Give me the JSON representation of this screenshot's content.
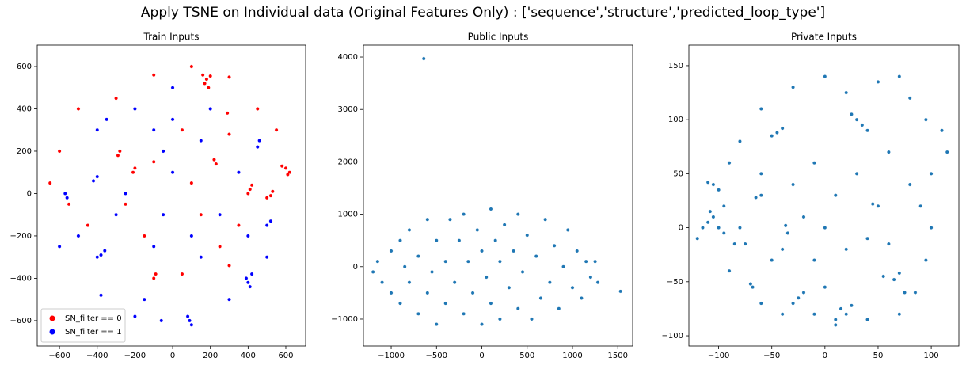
{
  "title": "Apply TSNE on Individual data (Original Features Only) : ['sequence','structure','predicted_loop_type']",
  "chart_data": [
    {
      "type": "scatter",
      "title": "Train Inputs",
      "legend": "lower left",
      "xlim": [
        -718,
        705
      ],
      "ylim": [
        -720,
        701
      ],
      "xticks": [
        {
          "value": -600,
          "label": "−600"
        },
        {
          "value": -400,
          "label": "−400"
        },
        {
          "value": -200,
          "label": "−200"
        },
        0,
        200,
        400,
        600
      ],
      "yticks": [
        {
          "value": -600,
          "label": "−600"
        },
        {
          "value": -400,
          "label": "−400"
        },
        {
          "value": -200,
          "label": "−200"
        },
        0,
        200,
        400,
        600
      ],
      "series": [
        {
          "name": "SN_filter == 0",
          "color": "#ff0000",
          "x": [
            180,
            170,
            200,
            190,
            160,
            600,
            620,
            580,
            610,
            520,
            530,
            500,
            410,
            400,
            420,
            -280,
            -290,
            -200,
            -210,
            220,
            230,
            300,
            290,
            -100,
            -90,
            50,
            -650,
            -600,
            -500,
            -300,
            -100,
            100,
            300,
            450,
            550,
            350,
            150,
            -150,
            -450,
            -100,
            50,
            -250,
            250,
            300,
            -550,
            100
          ],
          "y": [
            540,
            520,
            555,
            500,
            560,
            120,
            100,
            130,
            90,
            -10,
            10,
            -20,
            20,
            0,
            40,
            200,
            180,
            120,
            100,
            160,
            140,
            280,
            380,
            -400,
            -380,
            -380,
            50,
            200,
            400,
            450,
            560,
            600,
            550,
            400,
            300,
            -150,
            -100,
            -200,
            -150,
            150,
            300,
            -50,
            -250,
            -340,
            -50,
            50
          ]
        },
        {
          "name": "SN_filter == 1",
          "color": "#0000ff",
          "x": [
            400,
            410,
            390,
            420,
            -380,
            -400,
            -360,
            -60,
            90,
            100,
            80,
            450,
            460,
            -570,
            -560,
            -380,
            -200,
            -150,
            -400,
            -200,
            0,
            -400,
            -420,
            0,
            200,
            350,
            500,
            300,
            150,
            -50,
            100,
            -300,
            -500,
            -250,
            0,
            150,
            -100,
            -600,
            500,
            -100,
            250,
            400,
            -50,
            -350,
            520
          ],
          "y": [
            -420,
            -440,
            -400,
            -380,
            -290,
            -300,
            -270,
            -600,
            -600,
            -620,
            -580,
            220,
            250,
            0,
            -20,
            -480,
            -580,
            -500,
            300,
            400,
            500,
            80,
            60,
            350,
            400,
            100,
            -150,
            -500,
            -300,
            -100,
            -200,
            -100,
            -200,
            0,
            100,
            250,
            300,
            -250,
            -300,
            -250,
            -100,
            -200,
            200,
            350,
            -130
          ]
        }
      ]
    },
    {
      "type": "scatter",
      "title": "Public Inputs",
      "xlim": [
        -1306,
        1664
      ],
      "ylim": [
        -1514,
        4227
      ],
      "xticks": [
        {
          "value": -1000,
          "label": "−1000"
        },
        {
          "value": -500,
          "label": "−500"
        },
        0,
        500,
        1000,
        1500
      ],
      "yticks": [
        {
          "value": -1000,
          "label": "−1000"
        },
        0,
        1000,
        2000,
        3000,
        4000
      ],
      "series": [
        {
          "color": "#1f77b4",
          "x": [
            -1200,
            -1150,
            -1100,
            -1000,
            -1000,
            -900,
            -900,
            -850,
            -800,
            -800,
            -700,
            -700,
            -600,
            -600,
            -550,
            -500,
            -500,
            -400,
            -400,
            -350,
            -300,
            -250,
            -200,
            -200,
            -150,
            -100,
            -50,
            0,
            0,
            50,
            100,
            100,
            150,
            200,
            200,
            250,
            300,
            350,
            400,
            400,
            450,
            500,
            550,
            600,
            650,
            700,
            750,
            800,
            850,
            900,
            950,
            1000,
            1050,
            1100,
            1150,
            1200,
            1250,
            1280,
            -640,
            1530
          ],
          "y": [
            -100,
            100,
            -300,
            300,
            -500,
            500,
            -700,
            0,
            700,
            -300,
            -900,
            200,
            900,
            -500,
            -100,
            500,
            -1100,
            100,
            -700,
            900,
            -300,
            500,
            -900,
            1000,
            100,
            -500,
            700,
            -1100,
            300,
            -200,
            1100,
            -700,
            500,
            -1000,
            100,
            800,
            -400,
            300,
            -800,
            1000,
            -100,
            600,
            -1000,
            200,
            -600,
            900,
            -300,
            400,
            -800,
            0,
            700,
            -400,
            300,
            -600,
            100,
            -200,
            100,
            -300,
            3970,
            -470
          ]
        }
      ]
    },
    {
      "type": "scatter",
      "title": "Private Inputs",
      "xlim": [
        -128,
        126
      ],
      "ylim": [
        -109.5,
        169
      ],
      "xticks": [
        {
          "value": -100,
          "label": "−100"
        },
        {
          "value": -50,
          "label": "−50"
        },
        0,
        50,
        100
      ],
      "yticks": [
        {
          "value": -100,
          "label": "−100"
        },
        {
          "value": -50,
          "label": "−50"
        },
        0,
        50,
        100,
        150
      ],
      "series": [
        {
          "color": "#1f77b4",
          "x": [
            -110,
            -105,
            -100,
            -115,
            -95,
            -108,
            -105,
            -100,
            -110,
            -45,
            -50,
            -40,
            -65,
            -60,
            -70,
            -68,
            -75,
            -40,
            -37,
            -35,
            -25,
            -30,
            -20,
            15,
            20,
            10,
            25,
            30,
            35,
            25,
            40,
            65,
            70,
            75,
            55,
            0,
            50,
            45,
            -85,
            -90,
            -80,
            -60,
            -30,
            0,
            20,
            50,
            70,
            80,
            95,
            110,
            115,
            100,
            90,
            100,
            95,
            85,
            70,
            40,
            10,
            -10,
            -40,
            -60,
            -90,
            -120,
            -95,
            -80,
            -60,
            -30,
            -10,
            10,
            30,
            60,
            -20,
            0,
            20,
            40,
            -50,
            -10,
            60,
            80
          ],
          "y": [
            5,
            10,
            0,
            0,
            -5,
            15,
            40,
            35,
            42,
            88,
            85,
            92,
            28,
            30,
            -52,
            -55,
            -15,
            -20,
            2,
            -5,
            -65,
            -70,
            -60,
            -75,
            -80,
            -85,
            -72,
            100,
            95,
            105,
            90,
            -48,
            -42,
            -60,
            -45,
            -55,
            20,
            22,
            -15,
            60,
            80,
            110,
            130,
            140,
            125,
            135,
            140,
            120,
            100,
            90,
            70,
            50,
            20,
            0,
            -30,
            -60,
            -80,
            -85,
            -90,
            -80,
            -80,
            -70,
            -40,
            -10,
            20,
            0,
            50,
            40,
            60,
            30,
            50,
            70,
            10,
            0,
            -20,
            -10,
            -30,
            -30,
            -15,
            40
          ]
        }
      ]
    }
  ]
}
